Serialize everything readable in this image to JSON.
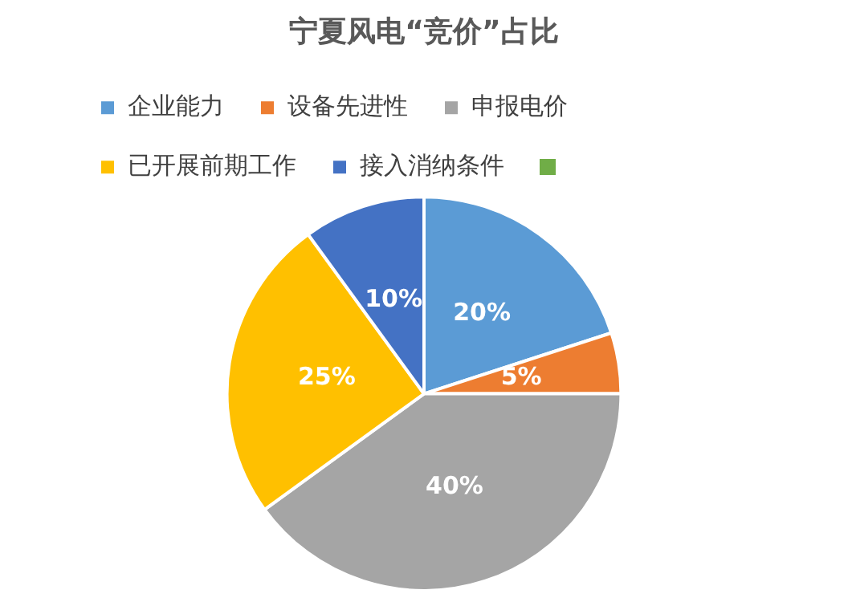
{
  "chart_data": {
    "type": "pie",
    "title": "宁夏风电“竞价”占比",
    "categories": [
      "企业能力",
      "设备先进性",
      "申报电价",
      "已开展前期工作",
      "接入消纳条件"
    ],
    "values": [
      20,
      5,
      40,
      25,
      10
    ],
    "colors": [
      "#5b9bd5",
      "#ed7d31",
      "#a5a5a5",
      "#ffc000",
      "#4472c4"
    ],
    "value_labels": [
      "20%",
      "5%",
      "40%",
      "25%",
      "10%"
    ],
    "legend": "top"
  }
}
